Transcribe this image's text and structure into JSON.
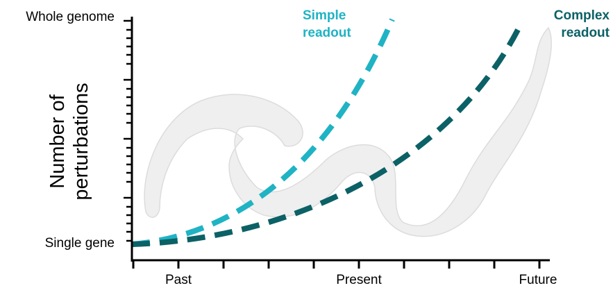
{
  "y_axis": {
    "title": "Number of perturbations",
    "top_label": "Whole genome",
    "bottom_label": "Single gene"
  },
  "x_axis": {
    "labels": [
      "Past",
      "Present",
      "Future"
    ]
  },
  "curves": [
    {
      "label": "Simple readout"
    },
    {
      "label": "Complex readout"
    }
  ]
}
